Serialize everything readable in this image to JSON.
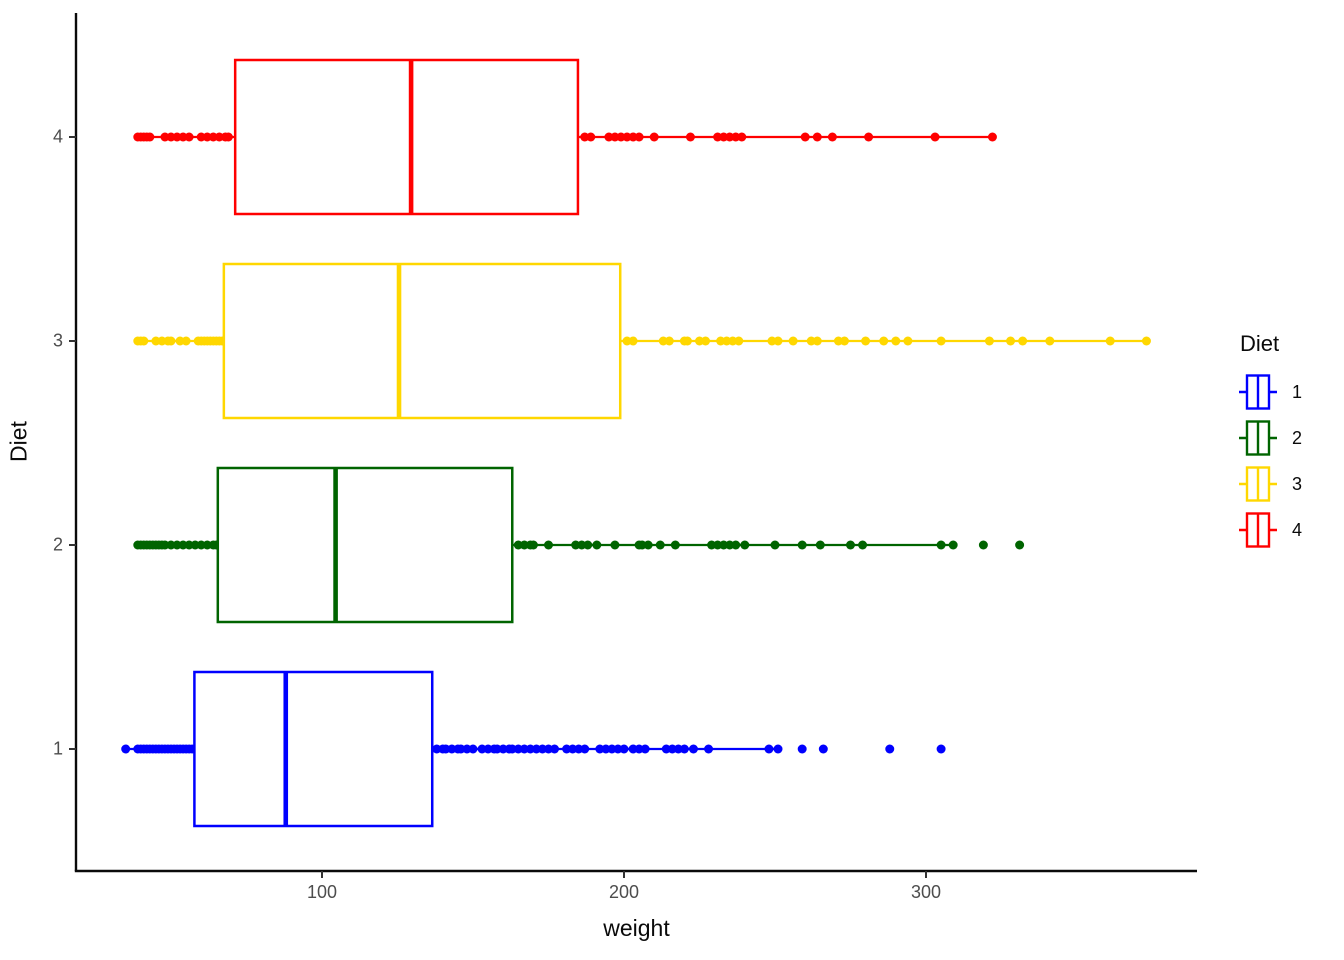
{
  "chart_data": {
    "type": "boxplot",
    "orientation": "horizontal",
    "title": "",
    "xlabel": "weight",
    "ylabel": "Diet",
    "x_ticks": [
      "100",
      "200",
      "300"
    ],
    "x_tick_values": [
      100,
      200,
      300
    ],
    "x_range": [
      18,
      391
    ],
    "categories": [
      "1",
      "2",
      "3",
      "4"
    ],
    "grid": "off",
    "axis_line_color": "#0a0a0a",
    "tick_text_color": "#4d4d4d",
    "series": [
      {
        "label": "1",
        "color": "#0000ff",
        "box": {
          "whisker_low": 35,
          "q1": 57.75,
          "median": 88,
          "q3": 136.5,
          "whisker_high": 251
        },
        "points": [
          35,
          39,
          40,
          41,
          42,
          43,
          44,
          45,
          46,
          47,
          48,
          49,
          50,
          51,
          52,
          53,
          54,
          55,
          56,
          57,
          58,
          138,
          140,
          141,
          143,
          145,
          146,
          148,
          150,
          153,
          155,
          157,
          158,
          160,
          162,
          163,
          165,
          167,
          169,
          171,
          173,
          175,
          177,
          181,
          183,
          185,
          187,
          192,
          194,
          196,
          198,
          200,
          203,
          205,
          207,
          214,
          216,
          218,
          220,
          223,
          228,
          248,
          251
        ],
        "outliers": [
          259,
          266,
          288,
          305
        ]
      },
      {
        "label": "2",
        "color": "#006400",
        "box": {
          "whisker_low": 39,
          "q1": 65.5,
          "median": 104.5,
          "q3": 163,
          "whisker_high": 309
        },
        "points": [
          39,
          40,
          41,
          42,
          43,
          44,
          45,
          46,
          47,
          48,
          50,
          52,
          54,
          56,
          58,
          60,
          62,
          64,
          65,
          165,
          167,
          169,
          170,
          175,
          184,
          186,
          188,
          191,
          197,
          205,
          206,
          208,
          212,
          217,
          229,
          231,
          233,
          235,
          237,
          240,
          250,
          259,
          265,
          275,
          279,
          305,
          309
        ],
        "outliers": [
          319,
          331
        ]
      },
      {
        "label": "3",
        "color": "#ffd700",
        "box": {
          "whisker_low": 39,
          "q1": 67.5,
          "median": 125.5,
          "q3": 198.75,
          "whisker_high": 373
        },
        "points": [
          39,
          40,
          41,
          45,
          47,
          49,
          50,
          53,
          55,
          59,
          60,
          61,
          62,
          63,
          64,
          65,
          66,
          67,
          201,
          203,
          213,
          215,
          220,
          221,
          225,
          227,
          232,
          234,
          236,
          238,
          249,
          251,
          256,
          262,
          264,
          271,
          273,
          280,
          286,
          290,
          294,
          305,
          321,
          328,
          332,
          341,
          361,
          373
        ],
        "outliers": []
      },
      {
        "label": "4",
        "color": "#ff0000",
        "box": {
          "whisker_low": 39,
          "q1": 71.25,
          "median": 129.5,
          "q3": 184.75,
          "whisker_high": 322
        },
        "points": [
          39,
          40,
          41,
          42,
          43,
          48,
          50,
          52,
          54,
          56,
          60,
          62,
          64,
          66,
          68,
          69,
          187,
          189,
          195,
          197,
          199,
          201,
          203,
          205,
          210,
          222,
          231,
          233,
          235,
          237,
          239,
          260,
          264,
          269,
          281,
          303,
          322
        ],
        "outliers": []
      }
    ],
    "legend": {
      "title": "Diet",
      "position": "right",
      "entries": [
        {
          "label": "1",
          "color": "#0000ff"
        },
        {
          "label": "2",
          "color": "#006400"
        },
        {
          "label": "3",
          "color": "#ffd700"
        },
        {
          "label": "4",
          "color": "#ff0000"
        }
      ]
    }
  }
}
